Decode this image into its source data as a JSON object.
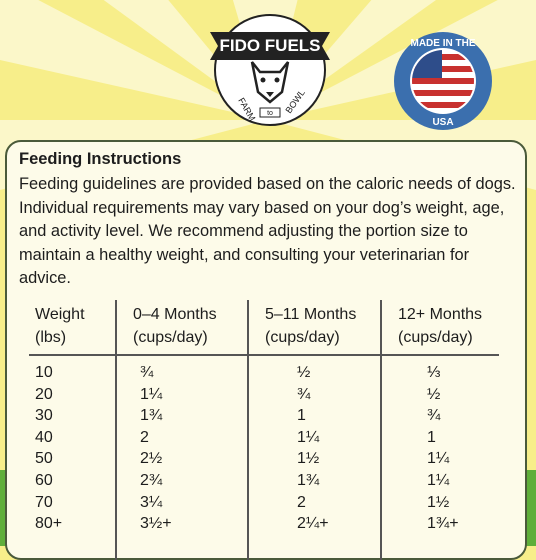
{
  "logo": {
    "brand": "FIDO FUELS",
    "left": "FARM",
    "middle": "to",
    "right": "BOWL"
  },
  "badge": {
    "top": "MADE IN THE",
    "bottom": "USA"
  },
  "heading": "Feeding Instructions",
  "description": "Feeding guidelines are provided based on the caloric needs of dogs. Individual requirements may vary based on your dog’s weight, age, and activity level. We recommend adjusting the portion size to maintain a healthy weight, and consulting your veterinarian for advice.",
  "table": {
    "headers": [
      {
        "title": "Weight",
        "unit": "(lbs)"
      },
      {
        "title": "0–4 Months",
        "unit": "(cups/day)"
      },
      {
        "title": "5–11 Months",
        "unit": "(cups/day)"
      },
      {
        "title": "12+ Months",
        "unit": "(cups/day)"
      }
    ],
    "rows": [
      [
        "10",
        "¾",
        "½",
        "⅓"
      ],
      [
        "20",
        "1¼",
        "¾",
        "½"
      ],
      [
        "30",
        "1¾",
        "1",
        "¾"
      ],
      [
        "40",
        "2",
        "1¼",
        "1"
      ],
      [
        "50",
        "2½",
        "1½",
        "1¼"
      ],
      [
        "60",
        "2¾",
        "1¾",
        "1¼"
      ],
      [
        "70",
        "3¼",
        "2",
        "1½"
      ],
      [
        "80+",
        "3½+",
        "2¼+",
        "1¾+"
      ]
    ]
  }
}
